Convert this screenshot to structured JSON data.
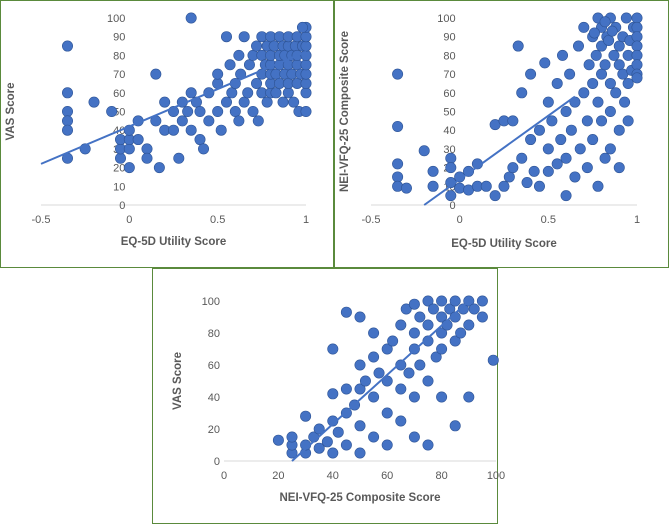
{
  "colors": {
    "point": "#4472C4",
    "point_edge": "#2F5597",
    "trend": "#4472C4",
    "axis": "#D9D9D9",
    "text": "#595959",
    "border": "#5A8A3C"
  },
  "chart_data": [
    {
      "type": "scatter",
      "xlabel": "EQ-5D Utility Score",
      "ylabel": "VAS Score",
      "xlim": [
        -0.5,
        1
      ],
      "ylim": [
        0,
        100
      ],
      "xticks": [
        -0.5,
        0,
        0.5,
        1
      ],
      "yticks": [
        0,
        10,
        20,
        30,
        40,
        50,
        60,
        70,
        80,
        90,
        100
      ],
      "trendline": {
        "x": [
          -0.5,
          1
        ],
        "y": [
          22,
          82
        ]
      },
      "points": [
        [
          -0.35,
          85
        ],
        [
          -0.35,
          60
        ],
        [
          -0.35,
          50
        ],
        [
          -0.35,
          45
        ],
        [
          -0.35,
          40
        ],
        [
          -0.35,
          25
        ],
        [
          -0.25,
          30
        ],
        [
          -0.2,
          55
        ],
        [
          -0.1,
          50
        ],
        [
          -0.05,
          25
        ],
        [
          -0.05,
          30
        ],
        [
          -0.05,
          35
        ],
        [
          0,
          20
        ],
        [
          0,
          30
        ],
        [
          0,
          35
        ],
        [
          0,
          40
        ],
        [
          0.05,
          35
        ],
        [
          0.05,
          45
        ],
        [
          0.1,
          30
        ],
        [
          0.1,
          25
        ],
        [
          0.15,
          70
        ],
        [
          0.15,
          45
        ],
        [
          0.17,
          20
        ],
        [
          0.2,
          55
        ],
        [
          0.2,
          40
        ],
        [
          0.25,
          50
        ],
        [
          0.25,
          40
        ],
        [
          0.28,
          25
        ],
        [
          0.3,
          55
        ],
        [
          0.3,
          45
        ],
        [
          0.33,
          50
        ],
        [
          0.35,
          100
        ],
        [
          0.35,
          60
        ],
        [
          0.35,
          40
        ],
        [
          0.38,
          55
        ],
        [
          0.4,
          35
        ],
        [
          0.4,
          50
        ],
        [
          0.42,
          30
        ],
        [
          0.45,
          45
        ],
        [
          0.45,
          60
        ],
        [
          0.5,
          50
        ],
        [
          0.5,
          65
        ],
        [
          0.5,
          70
        ],
        [
          0.52,
          40
        ],
        [
          0.55,
          55
        ],
        [
          0.55,
          90
        ],
        [
          0.57,
          75
        ],
        [
          0.58,
          60
        ],
        [
          0.6,
          50
        ],
        [
          0.6,
          65
        ],
        [
          0.62,
          45
        ],
        [
          0.62,
          80
        ],
        [
          0.63,
          70
        ],
        [
          0.65,
          55
        ],
        [
          0.65,
          90
        ],
        [
          0.67,
          60
        ],
        [
          0.68,
          75
        ],
        [
          0.7,
          50
        ],
        [
          0.7,
          80
        ],
        [
          0.72,
          65
        ],
        [
          0.72,
          85
        ],
        [
          0.73,
          45
        ],
        [
          0.75,
          60
        ],
        [
          0.75,
          70
        ],
        [
          0.75,
          80
        ],
        [
          0.75,
          90
        ],
        [
          0.77,
          75
        ],
        [
          0.78,
          55
        ],
        [
          0.78,
          85
        ],
        [
          0.8,
          60
        ],
        [
          0.8,
          65
        ],
        [
          0.8,
          70
        ],
        [
          0.8,
          75
        ],
        [
          0.8,
          80
        ],
        [
          0.8,
          90
        ],
        [
          0.82,
          85
        ],
        [
          0.83,
          60
        ],
        [
          0.83,
          70
        ],
        [
          0.85,
          65
        ],
        [
          0.85,
          75
        ],
        [
          0.85,
          80
        ],
        [
          0.85,
          90
        ],
        [
          0.87,
          55
        ],
        [
          0.87,
          85
        ],
        [
          0.88,
          70
        ],
        [
          0.88,
          80
        ],
        [
          0.9,
          60
        ],
        [
          0.9,
          65
        ],
        [
          0.9,
          75
        ],
        [
          0.9,
          85
        ],
        [
          0.9,
          90
        ],
        [
          0.92,
          80
        ],
        [
          0.92,
          70
        ],
        [
          0.93,
          55
        ],
        [
          0.94,
          85
        ],
        [
          0.95,
          65
        ],
        [
          0.95,
          75
        ],
        [
          0.95,
          80
        ],
        [
          0.95,
          90
        ],
        [
          0.96,
          50
        ],
        [
          0.97,
          70
        ],
        [
          0.98,
          85
        ],
        [
          1,
          50
        ],
        [
          1,
          60
        ],
        [
          1,
          65
        ],
        [
          1,
          70
        ],
        [
          1,
          75
        ],
        [
          1,
          80
        ],
        [
          1,
          85
        ],
        [
          1,
          90
        ],
        [
          1,
          95
        ],
        [
          0.98,
          95
        ]
      ]
    },
    {
      "type": "scatter",
      "xlabel": "EQ-5D Utility Score",
      "ylabel": "NEI-VFQ-25 Composite Score",
      "xlim": [
        -0.5,
        1
      ],
      "ylim": [
        0,
        100
      ],
      "xticks": [
        -0.5,
        0,
        0.5,
        1
      ],
      "yticks": [
        0,
        10,
        20,
        30,
        40,
        50,
        60,
        70,
        80,
        90,
        100
      ],
      "trendline": {
        "x": [
          -0.2,
          0.65
        ],
        "y": [
          0,
          58
        ]
      },
      "points": [
        [
          -0.35,
          70
        ],
        [
          -0.35,
          42
        ],
        [
          -0.35,
          22
        ],
        [
          -0.35,
          15
        ],
        [
          -0.35,
          10
        ],
        [
          -0.3,
          9
        ],
        [
          -0.2,
          29
        ],
        [
          -0.15,
          18
        ],
        [
          -0.15,
          10
        ],
        [
          -0.05,
          25
        ],
        [
          -0.05,
          20
        ],
        [
          -0.05,
          12
        ],
        [
          -0.05,
          5
        ],
        [
          0,
          15
        ],
        [
          0,
          9
        ],
        [
          0.05,
          18
        ],
        [
          0.05,
          8
        ],
        [
          0.1,
          10
        ],
        [
          0.1,
          22
        ],
        [
          0.15,
          10
        ],
        [
          0.2,
          43
        ],
        [
          0.2,
          5
        ],
        [
          0.25,
          45
        ],
        [
          0.25,
          10
        ],
        [
          0.28,
          15
        ],
        [
          0.3,
          20
        ],
        [
          0.3,
          45
        ],
        [
          0.33,
          85
        ],
        [
          0.35,
          25
        ],
        [
          0.35,
          60
        ],
        [
          0.38,
          12
        ],
        [
          0.4,
          35
        ],
        [
          0.4,
          70
        ],
        [
          0.42,
          18
        ],
        [
          0.45,
          40
        ],
        [
          0.45,
          10
        ],
        [
          0.48,
          76
        ],
        [
          0.5,
          30
        ],
        [
          0.5,
          55
        ],
        [
          0.5,
          18
        ],
        [
          0.52,
          45
        ],
        [
          0.55,
          22
        ],
        [
          0.55,
          65
        ],
        [
          0.57,
          35
        ],
        [
          0.58,
          80
        ],
        [
          0.6,
          50
        ],
        [
          0.6,
          25
        ],
        [
          0.6,
          5
        ],
        [
          0.62,
          70
        ],
        [
          0.63,
          40
        ],
        [
          0.65,
          55
        ],
        [
          0.65,
          15
        ],
        [
          0.67,
          85
        ],
        [
          0.68,
          30
        ],
        [
          0.7,
          95
        ],
        [
          0.7,
          60
        ],
        [
          0.72,
          20
        ],
        [
          0.72,
          45
        ],
        [
          0.73,
          75
        ],
        [
          0.75,
          90
        ],
        [
          0.75,
          65
        ],
        [
          0.75,
          35
        ],
        [
          0.77,
          80
        ],
        [
          0.78,
          10
        ],
        [
          0.78,
          55
        ],
        [
          0.8,
          95
        ],
        [
          0.8,
          85
        ],
        [
          0.8,
          70
        ],
        [
          0.8,
          45
        ],
        [
          0.82,
          25
        ],
        [
          0.82,
          75
        ],
        [
          0.83,
          90
        ],
        [
          0.85,
          100
        ],
        [
          0.85,
          65
        ],
        [
          0.85,
          50
        ],
        [
          0.85,
          30
        ],
        [
          0.87,
          80
        ],
        [
          0.88,
          95
        ],
        [
          0.88,
          60
        ],
        [
          0.9,
          85
        ],
        [
          0.9,
          75
        ],
        [
          0.9,
          40
        ],
        [
          0.9,
          20
        ],
        [
          0.92,
          90
        ],
        [
          0.92,
          70
        ],
        [
          0.93,
          55
        ],
        [
          0.94,
          100
        ],
        [
          0.95,
          80
        ],
        [
          0.95,
          65
        ],
        [
          0.95,
          45
        ],
        [
          0.96,
          88
        ],
        [
          0.97,
          72
        ],
        [
          0.98,
          95
        ],
        [
          1,
          100
        ],
        [
          1,
          95
        ],
        [
          1,
          90
        ],
        [
          1,
          85
        ],
        [
          1,
          80
        ],
        [
          1,
          75
        ],
        [
          1,
          70
        ],
        [
          1,
          68
        ],
        [
          0.78,
          100
        ],
        [
          0.82,
          98
        ],
        [
          0.76,
          92
        ],
        [
          0.84,
          88
        ],
        [
          0.86,
          93
        ]
      ]
    },
    {
      "type": "scatter",
      "xlabel": "NEI-VFQ-25 Composite Score",
      "ylabel": "VAS Score",
      "xlim": [
        0,
        100
      ],
      "ylim": [
        0,
        100
      ],
      "xticks": [
        0,
        20,
        40,
        60,
        80,
        100
      ],
      "yticks": [
        0,
        20,
        40,
        60,
        80,
        100
      ],
      "trendline": {
        "x": [
          25,
          90
        ],
        "y": [
          0,
          100
        ]
      },
      "points": [
        [
          20,
          13
        ],
        [
          25,
          5
        ],
        [
          25,
          10
        ],
        [
          25,
          15
        ],
        [
          30,
          5
        ],
        [
          30,
          10
        ],
        [
          30,
          28
        ],
        [
          33,
          15
        ],
        [
          35,
          8
        ],
        [
          35,
          20
        ],
        [
          38,
          12
        ],
        [
          40,
          70
        ],
        [
          40,
          42
        ],
        [
          40,
          25
        ],
        [
          40,
          5
        ],
        [
          42,
          18
        ],
        [
          45,
          93
        ],
        [
          45,
          45
        ],
        [
          45,
          30
        ],
        [
          45,
          10
        ],
        [
          48,
          35
        ],
        [
          50,
          90
        ],
        [
          50,
          60
        ],
        [
          50,
          45
        ],
        [
          50,
          22
        ],
        [
          50,
          5
        ],
        [
          52,
          50
        ],
        [
          55,
          80
        ],
        [
          55,
          65
        ],
        [
          55,
          40
        ],
        [
          55,
          15
        ],
        [
          57,
          55
        ],
        [
          60,
          70
        ],
        [
          60,
          50
        ],
        [
          60,
          30
        ],
        [
          60,
          10
        ],
        [
          62,
          75
        ],
        [
          65,
          85
        ],
        [
          65,
          60
        ],
        [
          65,
          45
        ],
        [
          65,
          25
        ],
        [
          67,
          95
        ],
        [
          68,
          55
        ],
        [
          70,
          98
        ],
        [
          70,
          80
        ],
        [
          70,
          70
        ],
        [
          70,
          40
        ],
        [
          70,
          15
        ],
        [
          72,
          90
        ],
        [
          72,
          60
        ],
        [
          75,
          100
        ],
        [
          75,
          85
        ],
        [
          75,
          75
        ],
        [
          75,
          50
        ],
        [
          75,
          10
        ],
        [
          77,
          95
        ],
        [
          78,
          65
        ],
        [
          80,
          100
        ],
        [
          80,
          90
        ],
        [
          80,
          80
        ],
        [
          80,
          70
        ],
        [
          80,
          40
        ],
        [
          82,
          85
        ],
        [
          83,
          95
        ],
        [
          85,
          100
        ],
        [
          85,
          90
        ],
        [
          85,
          75
        ],
        [
          85,
          22
        ],
        [
          87,
          80
        ],
        [
          88,
          95
        ],
        [
          90,
          100
        ],
        [
          90,
          85
        ],
        [
          90,
          40
        ],
        [
          92,
          95
        ],
        [
          95,
          100
        ],
        [
          95,
          90
        ],
        [
          99,
          63
        ]
      ]
    }
  ]
}
